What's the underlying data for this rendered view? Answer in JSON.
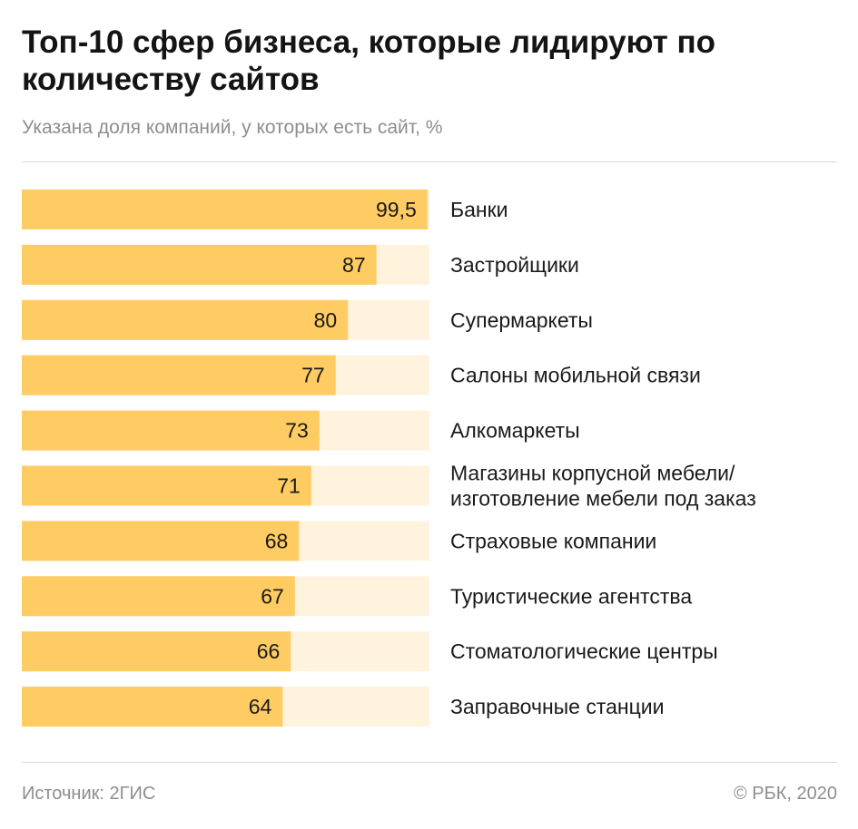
{
  "header": {
    "title": "Топ-10 сфер бизнеса, которые лидируют по количеству сайтов",
    "subtitle": "Указана доля компаний, у которых есть сайт, %"
  },
  "footer": {
    "source": "Источник: 2ГИС",
    "copyright": "© РБК, 2020"
  },
  "colors": {
    "bar": "#ffcb63",
    "track": "#fff3de"
  },
  "chart_data": {
    "type": "bar",
    "orientation": "horizontal",
    "categories": [
      "Банки",
      "Застройщики",
      "Супермаркеты",
      "Салоны мобильной связи",
      "Алкомаркеты",
      "Магазины корпусной мебели/ изготовление мебели под заказ",
      "Страховые компании",
      "Туристические агентства",
      "Стоматологические центры",
      "Заправочные станции"
    ],
    "category_lines": [
      [
        "Банки"
      ],
      [
        "Застройщики"
      ],
      [
        "Супермаркеты"
      ],
      [
        "Салоны мобильной связи"
      ],
      [
        "Алкомаркеты"
      ],
      [
        "Магазины корпусной мебели/",
        "изготовление мебели под заказ"
      ],
      [
        "Страховые компании"
      ],
      [
        "Туристические агентства"
      ],
      [
        "Стоматологические центры"
      ],
      [
        "Заправочные станции"
      ]
    ],
    "values": [
      99.5,
      87,
      80,
      77,
      73,
      71,
      68,
      67,
      66,
      64
    ],
    "value_labels": [
      "99,5",
      "87",
      "80",
      "77",
      "73",
      "71",
      "68",
      "67",
      "66",
      "64"
    ],
    "xlim": [
      0,
      100
    ],
    "grid": false,
    "legend": "none"
  }
}
